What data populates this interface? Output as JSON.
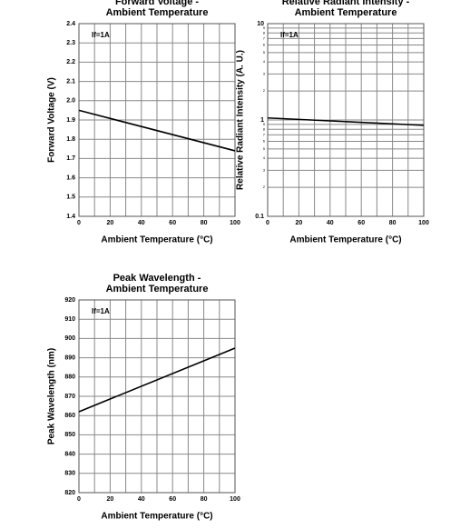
{
  "chart_data": [
    {
      "type": "line",
      "title": [
        "Forward Voltage -",
        "Ambient Temperature"
      ],
      "annotation": "If=1A",
      "x_label": "Ambient Temperature (°C)",
      "y_label": "Forward Voltage (V)",
      "x": [
        0,
        100
      ],
      "series": [
        {
          "name": "Forward Voltage",
          "color": "#000000",
          "values": [
            1.95,
            1.74
          ]
        }
      ],
      "xlim": [
        0,
        100
      ],
      "xticks": [
        0,
        20,
        40,
        60,
        80,
        100
      ],
      "x_minor_ticks": [
        10,
        30,
        50,
        70,
        90
      ],
      "ylim": [
        1.4,
        2.4
      ],
      "yticks": [
        1.4,
        1.5,
        1.6,
        1.7,
        1.8,
        1.9,
        {
          "value": 2,
          "label": "2.0"
        },
        2.1,
        2.2,
        2.3,
        2.4
      ],
      "grid": true
    },
    {
      "type": "line",
      "title": [
        "Relative Radiant Intensity -",
        "Ambient Temperature"
      ],
      "annotation": "If=1A",
      "x_label": "Ambient Temperature (°C)",
      "y_label": "Relative Radiant Intensity (A. U.)",
      "x": [
        0,
        100
      ],
      "series": [
        {
          "name": "Relative Radiant Intensity",
          "color": "#000000",
          "values": [
            1.05,
            0.88
          ]
        }
      ],
      "xlim": [
        0,
        100
      ],
      "xticks": [
        0,
        20,
        40,
        60,
        80,
        100
      ],
      "x_minor_ticks": [
        10,
        30,
        50,
        70,
        90
      ],
      "ylog": true,
      "ylim": [
        0.1,
        10
      ],
      "yticks": [
        0.1,
        1,
        10
      ],
      "y_minor_ticks": [
        {
          "value": 0.2,
          "label": "2"
        },
        {
          "value": 0.3,
          "label": "3"
        },
        {
          "value": 0.4,
          "label": "4"
        },
        {
          "value": 0.5,
          "label": "5"
        },
        {
          "value": 0.6,
          "label": "6"
        },
        {
          "value": 0.7,
          "label": "7"
        },
        {
          "value": 0.8,
          "label": "8"
        },
        {
          "value": 0.9,
          "label": "9"
        },
        2,
        3,
        4,
        5,
        6,
        7,
        8,
        9
      ],
      "grid": true
    },
    {
      "type": "line",
      "title": [
        "Peak Wavelength -",
        "Ambient Temperature"
      ],
      "annotation": "If=1A",
      "x_label": "Ambient Temperature (°C)",
      "y_label": "Peak Wavelength (nm)",
      "x": [
        0,
        100
      ],
      "series": [
        {
          "name": "Peak Wavelength",
          "color": "#000000",
          "values": [
            862,
            895
          ]
        }
      ],
      "xlim": [
        0,
        100
      ],
      "xticks": [
        0,
        20,
        40,
        60,
        80,
        100
      ],
      "x_minor_ticks": [
        10,
        30,
        50,
        70,
        90
      ],
      "ylim": [
        820,
        920
      ],
      "yticks": [
        820,
        830,
        840,
        850,
        860,
        870,
        880,
        890,
        900,
        910,
        920
      ],
      "grid": true
    }
  ]
}
